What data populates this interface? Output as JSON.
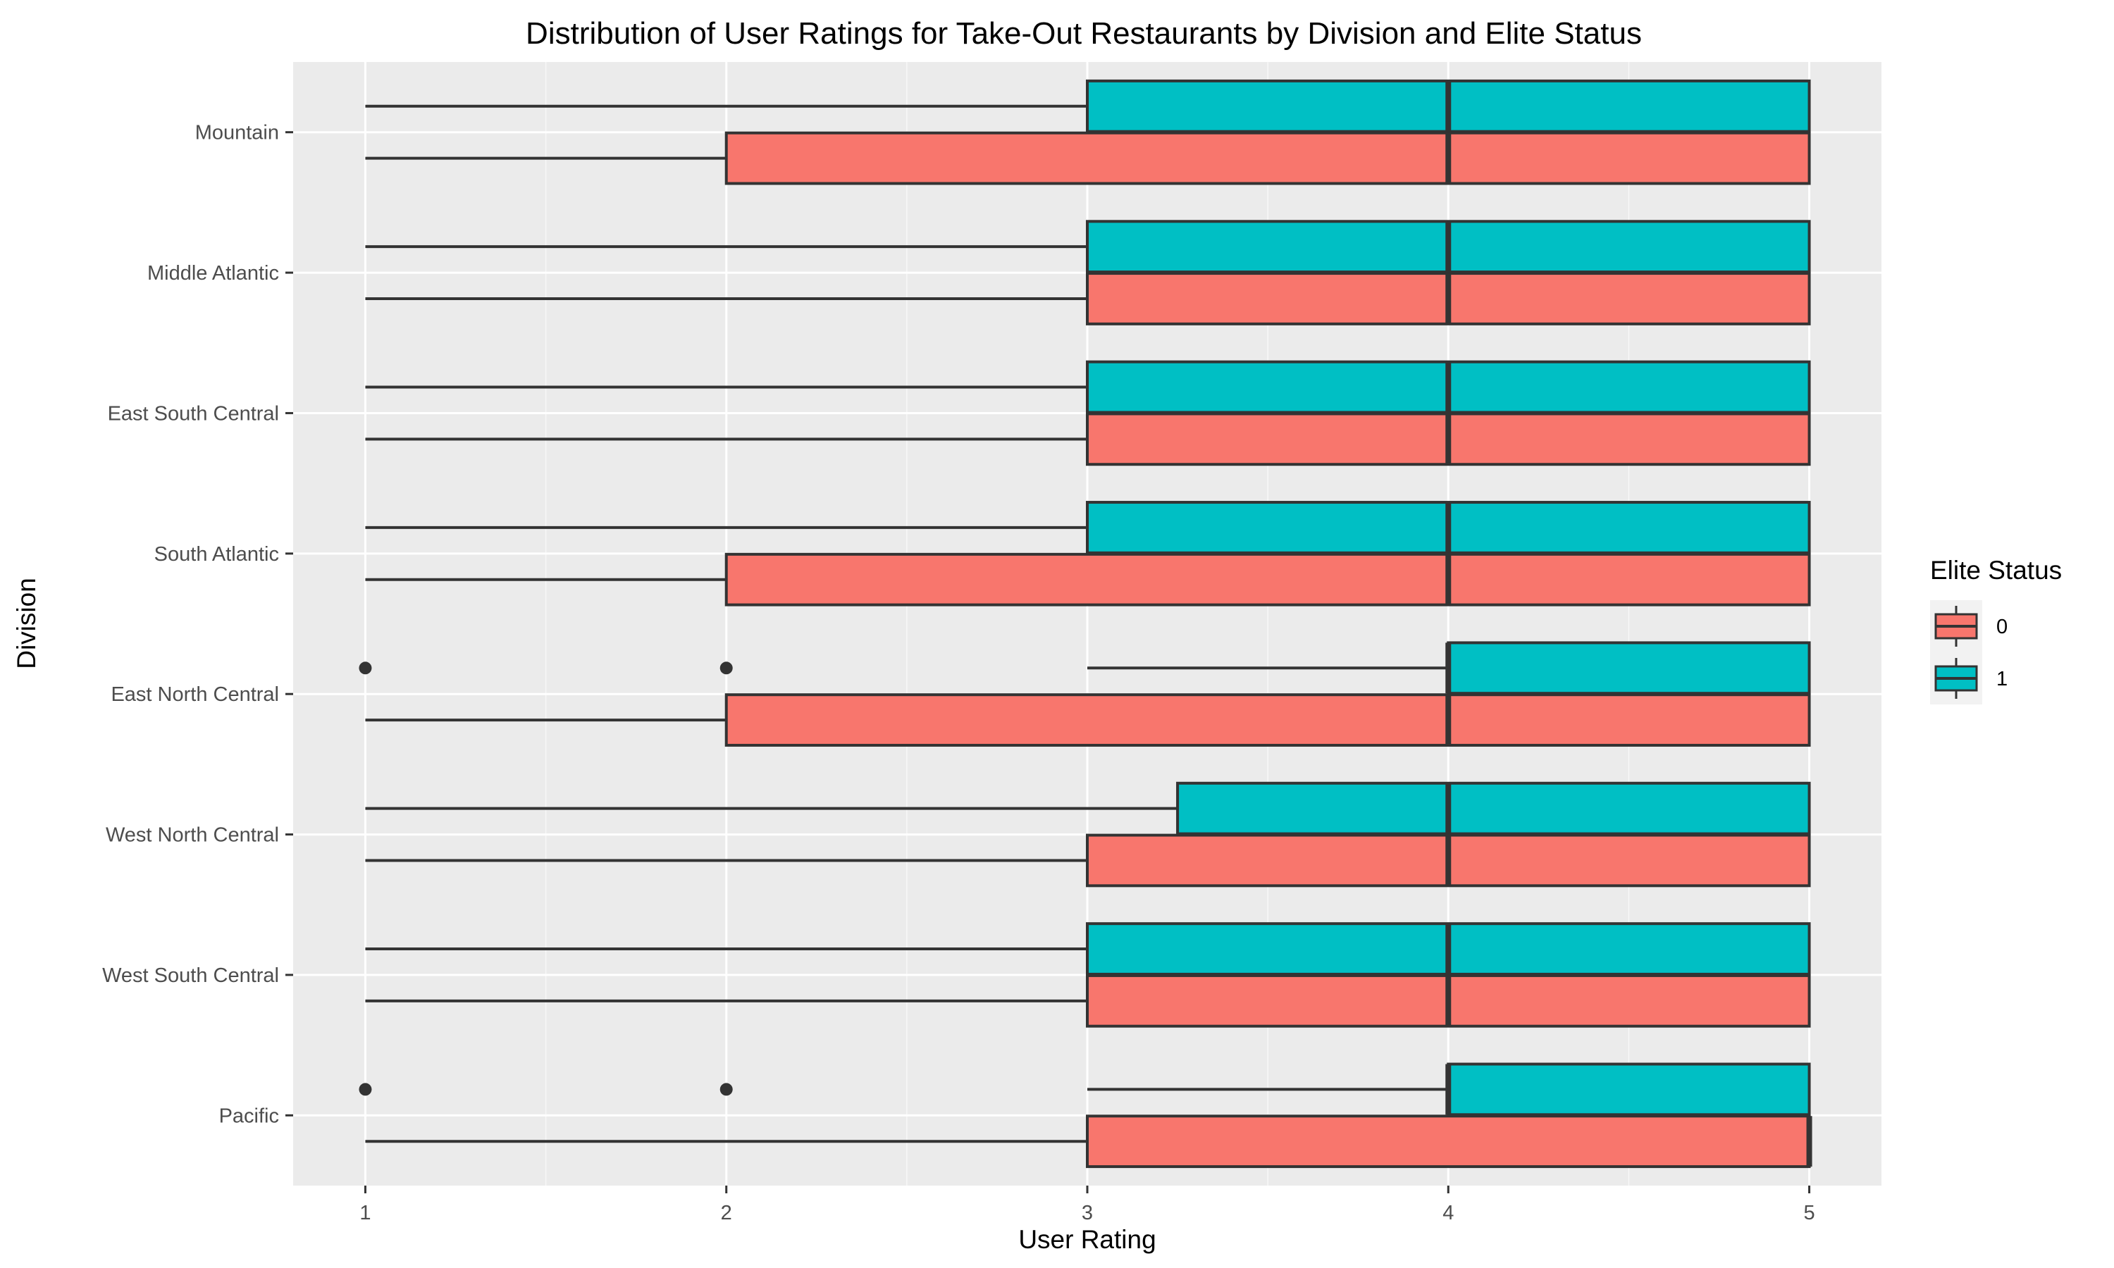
{
  "chart_data": {
    "type": "boxplot",
    "orientation": "horizontal",
    "title": "Distribution of User Ratings for Take-Out Restaurants by Division and Elite Status",
    "xlabel": "User Rating",
    "ylabel": "Division",
    "xlim": [
      0.8,
      5.2
    ],
    "x_ticks": [
      1,
      2,
      3,
      4,
      5
    ],
    "grid": true,
    "legend": {
      "title": "Elite Status",
      "position": "right",
      "entries": [
        {
          "label": "0",
          "color": "#F8766D"
        },
        {
          "label": "1",
          "color": "#00BFC4"
        }
      ]
    },
    "categories": [
      "Mountain",
      "Middle Atlantic",
      "East South Central",
      "South Atlantic",
      "East North Central",
      "West North Central",
      "West South Central",
      "Pacific"
    ],
    "series": [
      {
        "name": "0",
        "color": "#F8766D",
        "boxes": [
          {
            "min": 1,
            "q1": 2,
            "median": 4,
            "q3": 5,
            "max": 5,
            "outliers": []
          },
          {
            "min": 1,
            "q1": 3,
            "median": 4,
            "q3": 5,
            "max": 5,
            "outliers": []
          },
          {
            "min": 1,
            "q1": 3,
            "median": 4,
            "q3": 5,
            "max": 5,
            "outliers": []
          },
          {
            "min": 1,
            "q1": 2,
            "median": 4,
            "q3": 5,
            "max": 5,
            "outliers": []
          },
          {
            "min": 1,
            "q1": 2,
            "median": 4,
            "q3": 5,
            "max": 5,
            "outliers": []
          },
          {
            "min": 1,
            "q1": 3,
            "median": 4,
            "q3": 5,
            "max": 5,
            "outliers": []
          },
          {
            "min": 1,
            "q1": 3,
            "median": 4,
            "q3": 5,
            "max": 5,
            "outliers": []
          },
          {
            "min": 1,
            "q1": 3,
            "median": 5,
            "q3": 5,
            "max": 5,
            "outliers": []
          }
        ]
      },
      {
        "name": "1",
        "color": "#00BFC4",
        "boxes": [
          {
            "min": 1,
            "q1": 3,
            "median": 4,
            "q3": 5,
            "max": 5,
            "outliers": []
          },
          {
            "min": 1,
            "q1": 3,
            "median": 4,
            "q3": 5,
            "max": 5,
            "outliers": []
          },
          {
            "min": 1,
            "q1": 3,
            "median": 4,
            "q3": 5,
            "max": 5,
            "outliers": []
          },
          {
            "min": 1,
            "q1": 3,
            "median": 4,
            "q3": 5,
            "max": 5,
            "outliers": []
          },
          {
            "min": 3,
            "q1": 4,
            "median": 4,
            "q3": 5,
            "max": 5,
            "outliers": [
              1,
              2
            ]
          },
          {
            "min": 1,
            "q1": 3.25,
            "median": 4,
            "q3": 5,
            "max": 5,
            "outliers": []
          },
          {
            "min": 1,
            "q1": 3,
            "median": 4,
            "q3": 5,
            "max": 5,
            "outliers": []
          },
          {
            "min": 3,
            "q1": 4,
            "median": 4,
            "q3": 5,
            "max": 5,
            "outliers": [
              1,
              2
            ]
          }
        ]
      }
    ]
  }
}
